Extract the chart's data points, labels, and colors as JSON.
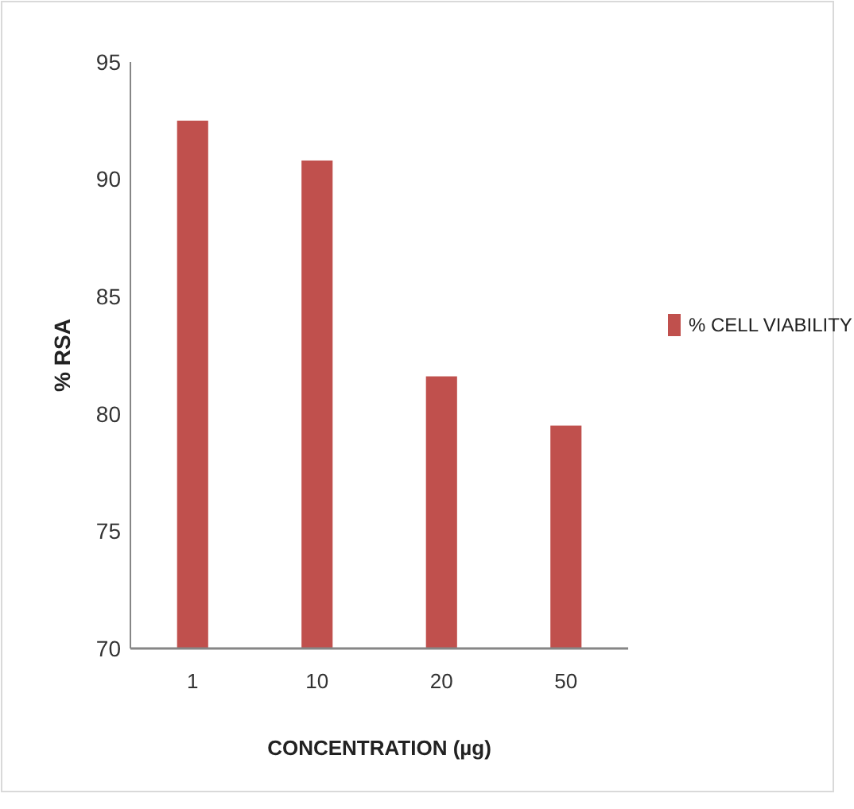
{
  "chart_data": {
    "type": "bar",
    "xlabel": "CONCENTRATION (µg)",
    "ylabel": "% RSA",
    "categories": [
      "1",
      "10",
      "20",
      "50"
    ],
    "series": [
      {
        "name": "% CELL VIABILITY",
        "color": "#c0504d",
        "values": [
          92.5,
          90.8,
          81.6,
          79.5
        ]
      }
    ],
    "ylim": [
      70,
      95
    ],
    "yticks": [
      70,
      75,
      80,
      85,
      90,
      95
    ],
    "grid": false,
    "legend": "right"
  }
}
